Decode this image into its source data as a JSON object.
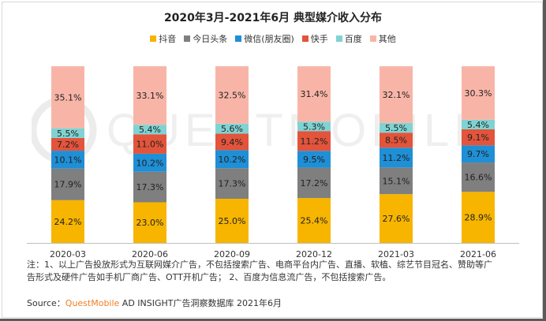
{
  "chart_data": {
    "type": "bar",
    "stacked": true,
    "title": "2020年3月-2021年6月 典型媒介收入分布",
    "categories": [
      "2020-03",
      "2020-06",
      "2020-09",
      "2020-12",
      "2021-03",
      "2021-06"
    ],
    "ylim": [
      0,
      100
    ],
    "legend_position": "top",
    "series": [
      {
        "name": "抖音",
        "color": "#f7b500",
        "values": [
          24.2,
          23.0,
          25.0,
          25.4,
          27.6,
          28.9
        ]
      },
      {
        "name": "今日头条",
        "color": "#7f7f7f",
        "values": [
          17.9,
          17.3,
          17.3,
          17.2,
          15.1,
          16.6
        ]
      },
      {
        "name": "微信(朋友圈)",
        "color": "#1f8fd6",
        "values": [
          10.1,
          10.2,
          10.2,
          9.5,
          11.2,
          9.7
        ]
      },
      {
        "name": "快手",
        "color": "#e2543b",
        "values": [
          7.2,
          11.0,
          9.4,
          11.2,
          8.5,
          9.1
        ]
      },
      {
        "name": "百度",
        "color": "#7fd3d3",
        "values": [
          5.5,
          5.4,
          5.6,
          5.3,
          5.5,
          5.4
        ]
      },
      {
        "name": "其他",
        "color": "#f8b5a7",
        "values": [
          35.1,
          33.1,
          32.5,
          31.4,
          32.1,
          30.3
        ]
      }
    ],
    "value_format": "percent_1dp"
  },
  "note": {
    "line1": "注：1、以上广告投放形式为互联网媒介广告，不包括搜索广告、电商平台内广告、直播、软植、综艺节目冠名、赞助等广",
    "line2": "告形式及硬件广告如手机厂商广告、OTT开机广告；  2、百度为信息流广告，不包括搜索广告。"
  },
  "source": {
    "prefix": "Source：",
    "brand": "QuestMobile",
    "suffix": " AD INSIGHT广告洞察数据库 2021年6月"
  },
  "watermark": {
    "text": "QUESTMOBILE"
  }
}
